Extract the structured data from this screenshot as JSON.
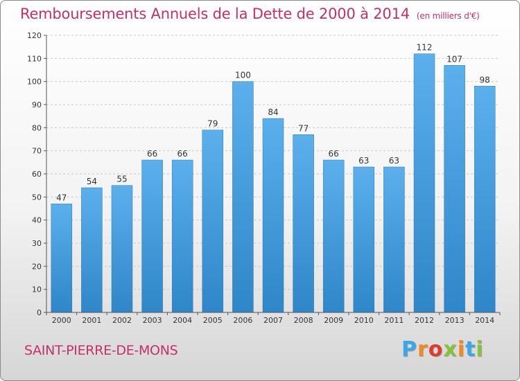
{
  "chart_data": {
    "type": "bar",
    "title": "Remboursements Annuels de la Dette de 2000 à 2014",
    "unit_label": "(en milliers d'€)",
    "categories": [
      "2000",
      "2001",
      "2002",
      "2003",
      "2004",
      "2005",
      "2006",
      "2007",
      "2008",
      "2009",
      "2010",
      "2011",
      "2012",
      "2013",
      "2014"
    ],
    "values": [
      47,
      54,
      55,
      66,
      66,
      79,
      100,
      84,
      77,
      66,
      63,
      63,
      112,
      107,
      98
    ],
    "yticks": [
      0,
      10,
      20,
      30,
      40,
      50,
      60,
      70,
      80,
      90,
      100,
      110,
      120
    ],
    "ylim": [
      0,
      120
    ],
    "grid": "horizontal dashed",
    "xlabel": "",
    "ylabel": "",
    "bar_color": "#4a9fe0"
  },
  "footer": {
    "commune": "SAINT-PIERRE-DE-MONS",
    "brand": "Proxiti",
    "brand_colors": [
      "#3aa7e6",
      "#f08a1e",
      "#e03b2f",
      "#86c13a",
      "#f08a1e",
      "#3aa7e6",
      "#86c13a"
    ]
  }
}
